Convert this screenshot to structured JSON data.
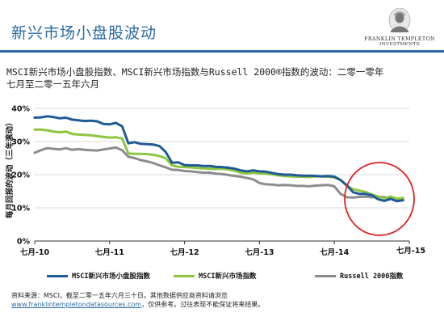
{
  "page": {
    "title": "新兴市场小盘股波动",
    "logo_line1": "FRANKLIN TEMPLETON",
    "logo_line2": "INVESTMENTS"
  },
  "colors": {
    "accent": "#2a6aa3",
    "series_msci_smallcap": "#1f5a96",
    "series_msci_em": "#8dc63f",
    "series_russell": "#8c8c8c",
    "highlight_circle": "#e02020"
  },
  "icons": {
    "logo": "franklin-portrait-icon"
  },
  "chart_data": {
    "type": "line",
    "title_line1": "MSCI新兴市场小盘股指数、MSCI新兴市场指数与Russell 2000®指数的波动：二零一零年",
    "title_line2": "七月至二零一五年六月",
    "ylabel": "每月回报的波动（三年滚动）",
    "xlabel": "",
    "ylim": [
      0,
      40
    ],
    "yticks": [
      "0%",
      "10%",
      "20%",
      "30%",
      "40%"
    ],
    "xticks": [
      {
        "label": "七月-10",
        "x": 0
      },
      {
        "label": "七月-11",
        "x": 12
      },
      {
        "label": "七月-12",
        "x": 24
      },
      {
        "label": "七月-13",
        "x": 36
      },
      {
        "label": "七月-14",
        "x": 48
      },
      {
        "label": "七月-15",
        "x": 60
      }
    ],
    "xlim": [
      0,
      60
    ],
    "grid": "horizontal",
    "legend_position": "bottom",
    "annotation": "red circle around July 2014 onward",
    "series": [
      {
        "name": "MSCI新兴市场小盘股指数",
        "values": [
          37.2,
          37.3,
          37.6,
          37.4,
          37.0,
          37.2,
          36.6,
          36.4,
          36.2,
          36.3,
          36.1,
          35.3,
          35.2,
          35.6,
          34.6,
          29.5,
          29.8,
          29.3,
          29.2,
          29.1,
          28.6,
          26.8,
          23.6,
          23.7,
          22.9,
          22.8,
          22.8,
          22.6,
          22.6,
          22.4,
          22.3,
          22.1,
          21.8,
          21.3,
          21.0,
          21.3,
          21.0,
          20.9,
          20.5,
          20.2,
          20.0,
          20.0,
          19.8,
          19.7,
          19.7,
          19.6,
          19.5,
          19.6,
          19.4,
          18.4,
          16.8,
          14.7,
          14.2,
          14.2,
          13.8,
          12.6,
          12.1,
          12.7,
          12.0,
          12.3
        ]
      },
      {
        "name": "MSCI新兴市场指数",
        "values": [
          33.6,
          33.6,
          33.4,
          33.0,
          32.8,
          33.0,
          32.3,
          32.1,
          32.0,
          31.9,
          31.6,
          31.4,
          31.2,
          31.3,
          30.9,
          26.4,
          26.3,
          26.3,
          26.2,
          26.0,
          25.6,
          24.9,
          22.8,
          22.4,
          22.3,
          22.2,
          22.0,
          21.9,
          21.8,
          21.7,
          21.8,
          21.6,
          21.2,
          20.6,
          20.4,
          20.6,
          20.4,
          20.3,
          20.1,
          19.8,
          19.6,
          19.5,
          19.4,
          19.4,
          19.3,
          19.5,
          19.5,
          19.4,
          19.2,
          18.4,
          16.6,
          15.6,
          15.2,
          14.8,
          14.0,
          13.4,
          12.9,
          13.4,
          12.8,
          13.0
        ]
      },
      {
        "name": "Russell 2000指数",
        "values": [
          26.6,
          27.4,
          28.0,
          27.8,
          27.6,
          28.0,
          27.5,
          27.7,
          27.5,
          27.4,
          27.3,
          27.6,
          27.9,
          28.2,
          27.4,
          25.4,
          25.0,
          24.4,
          24.0,
          23.5,
          22.8,
          22.2,
          21.5,
          21.4,
          21.1,
          21.0,
          20.8,
          20.6,
          20.6,
          20.3,
          20.2,
          19.9,
          19.6,
          19.4,
          19.0,
          18.6,
          17.5,
          17.1,
          17.0,
          16.8,
          16.9,
          16.8,
          16.6,
          16.6,
          16.5,
          16.7,
          16.8,
          16.9,
          16.5,
          14.2,
          13.2,
          13.1,
          13.3,
          13.4,
          13.2,
          13.4,
          13.2,
          13.0,
          12.6,
          12.7
        ]
      }
    ]
  },
  "source": {
    "text": "资料来源：MSCI，截至二零一五年六月三十日。其他数据供应商资料请浏览",
    "link": "www.franklintempletondatasources.com",
    "suffix": "，仅供参考。过往表现不能保证将来结果。"
  }
}
